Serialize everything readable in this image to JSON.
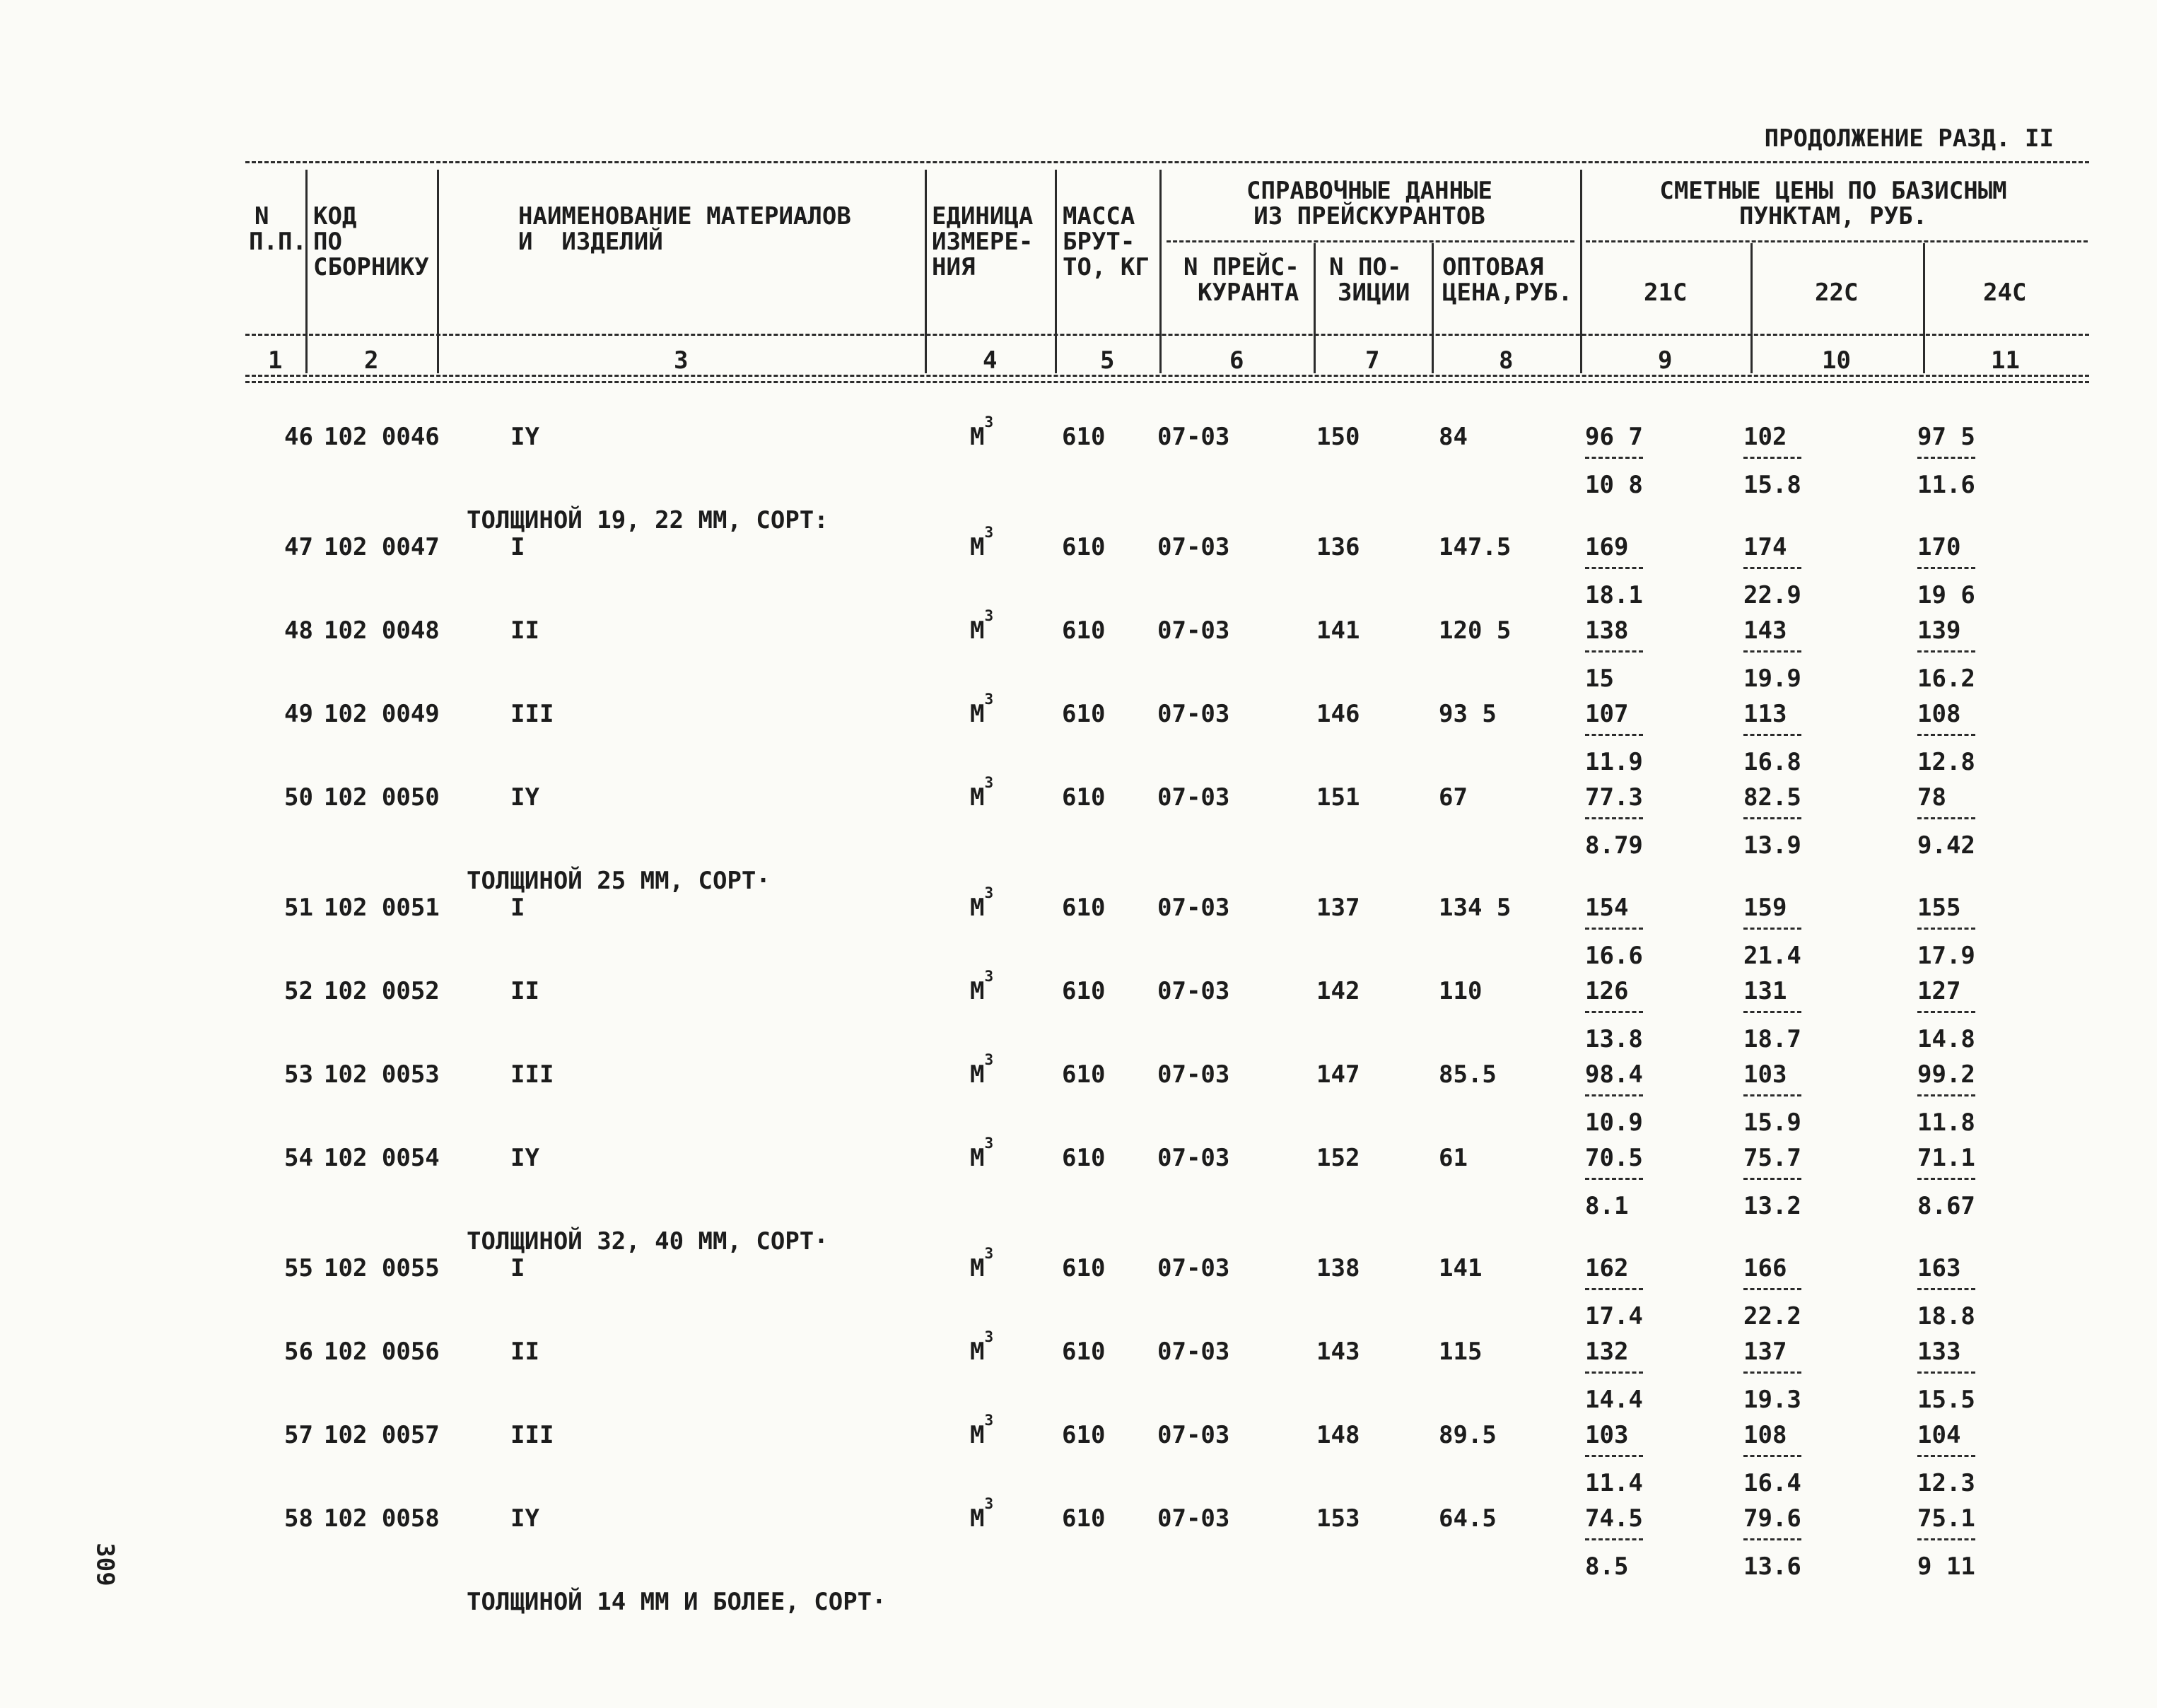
{
  "page": {
    "continuation": "ПРОДОЛЖЕНИЕ РАЗД. II",
    "page_number": "309"
  },
  "table": {
    "headers": {
      "col1": [
        "N",
        "П.П."
      ],
      "col2": [
        "КОД",
        "ПО",
        "СБОРНИКУ"
      ],
      "col3": [
        "НАИМЕНОВАНИЕ МАТЕРИАЛОВ",
        "И  ИЗДЕЛИЙ"
      ],
      "col4": [
        "ЕДИНИЦА",
        "ИЗМЕРЕ-",
        "НИЯ"
      ],
      "col5": [
        "МАССА",
        "БРУТ-",
        "ТО, КГ"
      ],
      "group_reference": [
        "СПРАВОЧНЫЕ ДАННЫЕ",
        "ИЗ ПРЕЙСКУРАНТОВ"
      ],
      "col6": [
        "N ПРЕЙС-",
        "КУРАНТА"
      ],
      "col7": [
        "N ПО-",
        "ЗИЦИИ"
      ],
      "col8": [
        "ОПТОВАЯ",
        "ЦЕНА,РУБ."
      ],
      "group_estimate": [
        "СМЕТНЫЕ ЦЕНЫ ПО БАЗИСНЫМ",
        "ПУНКТАМ, РУБ."
      ],
      "col9": "21С",
      "col10": "22С",
      "col11": "24С",
      "column_numbers": [
        "1",
        "2",
        "3",
        "4",
        "5",
        "6",
        "7",
        "8",
        "9",
        "10",
        "11"
      ]
    },
    "rows": [
      {
        "type": "item",
        "num": "46",
        "code": "102 0046",
        "name": "IY",
        "unit": "М3",
        "mass": "610",
        "pricelist": "07-03",
        "position": "150",
        "wholesale": "84",
        "p21": [
          "96 7",
          "10 8"
        ],
        "p22": [
          "102",
          "15.8"
        ],
        "p24": [
          "97 5",
          "11.6"
        ]
      },
      {
        "type": "section",
        "label": "ТОЛЩИНОЙ 19, 22 ММ, СОРТ:"
      },
      {
        "type": "item",
        "num": "47",
        "code": "102 0047",
        "name": "I",
        "unit": "М3",
        "mass": "610",
        "pricelist": "07-03",
        "position": "136",
        "wholesale": "147.5",
        "p21": [
          "169",
          "18.1"
        ],
        "p22": [
          "174",
          "22.9"
        ],
        "p24": [
          "170",
          "19 6"
        ]
      },
      {
        "type": "item",
        "num": "48",
        "code": "102 0048",
        "name": "II",
        "unit": "М3",
        "mass": "610",
        "pricelist": "07-03",
        "position": "141",
        "wholesale": "120 5",
        "p21": [
          "138",
          "15"
        ],
        "p22": [
          "143",
          "19.9"
        ],
        "p24": [
          "139",
          "16.2"
        ]
      },
      {
        "type": "item",
        "num": "49",
        "code": "102 0049",
        "name": "III",
        "unit": "М3",
        "mass": "610",
        "pricelist": "07-03",
        "position": "146",
        "wholesale": "93 5",
        "p21": [
          "107",
          "11.9"
        ],
        "p22": [
          "113",
          "16.8"
        ],
        "p24": [
          "108",
          "12.8"
        ]
      },
      {
        "type": "item",
        "num": "50",
        "code": "102 0050",
        "name": "IY",
        "unit": "М3",
        "mass": "610",
        "pricelist": "07-03",
        "position": "151",
        "wholesale": "67",
        "p21": [
          "77.3",
          "8.79"
        ],
        "p22": [
          "82.5",
          "13.9"
        ],
        "p24": [
          "78",
          "9.42"
        ]
      },
      {
        "type": "section",
        "label": "ТОЛЩИНОЙ 25 ММ, СОРТ·"
      },
      {
        "type": "item",
        "num": "51",
        "code": "102 0051",
        "name": "I",
        "unit": "М3",
        "mass": "610",
        "pricelist": "07-03",
        "position": "137",
        "wholesale": "134 5",
        "p21": [
          "154",
          "16.6"
        ],
        "p22": [
          "159",
          "21.4"
        ],
        "p24": [
          "155",
          "17.9"
        ]
      },
      {
        "type": "item",
        "num": "52",
        "code": "102 0052",
        "name": "II",
        "unit": "М3",
        "mass": "610",
        "pricelist": "07-03",
        "position": "142",
        "wholesale": "110",
        "p21": [
          "126",
          "13.8"
        ],
        "p22": [
          "131",
          "18.7"
        ],
        "p24": [
          "127",
          "14.8"
        ]
      },
      {
        "type": "item",
        "num": "53",
        "code": "102 0053",
        "name": "III",
        "unit": "М3",
        "mass": "610",
        "pricelist": "07-03",
        "position": "147",
        "wholesale": "85.5",
        "p21": [
          "98.4",
          "10.9"
        ],
        "p22": [
          "103",
          "15.9"
        ],
        "p24": [
          "99.2",
          "11.8"
        ]
      },
      {
        "type": "item",
        "num": "54",
        "code": "102 0054",
        "name": "IY",
        "unit": "М3",
        "mass": "610",
        "pricelist": "07-03",
        "position": "152",
        "wholesale": "61",
        "p21": [
          "70.5",
          "8.1"
        ],
        "p22": [
          "75.7",
          "13.2"
        ],
        "p24": [
          "71.1",
          "8.67"
        ]
      },
      {
        "type": "section",
        "label": "ТОЛЩИНОЙ 32, 40 ММ, СОРТ·"
      },
      {
        "type": "item",
        "num": "55",
        "code": "102 0055",
        "name": "I",
        "unit": "М3",
        "mass": "610",
        "pricelist": "07-03",
        "position": "138",
        "wholesale": "141",
        "p21": [
          "162",
          "17.4"
        ],
        "p22": [
          "166",
          "22.2"
        ],
        "p24": [
          "163",
          "18.8"
        ]
      },
      {
        "type": "item",
        "num": "56",
        "code": "102 0056",
        "name": "II",
        "unit": "М3",
        "mass": "610",
        "pricelist": "07-03",
        "position": "143",
        "wholesale": "115",
        "p21": [
          "132",
          "14.4"
        ],
        "p22": [
          "137",
          "19.3"
        ],
        "p24": [
          "133",
          "15.5"
        ]
      },
      {
        "type": "item",
        "num": "57",
        "code": "102 0057",
        "name": "III",
        "unit": "М3",
        "mass": "610",
        "pricelist": "07-03",
        "position": "148",
        "wholesale": "89.5",
        "p21": [
          "103",
          "11.4"
        ],
        "p22": [
          "108",
          "16.4"
        ],
        "p24": [
          "104",
          "12.3"
        ]
      },
      {
        "type": "item",
        "num": "58",
        "code": "102 0058",
        "name": "IY",
        "unit": "М3",
        "mass": "610",
        "pricelist": "07-03",
        "position": "153",
        "wholesale": "64.5",
        "p21": [
          "74.5",
          "8.5"
        ],
        "p22": [
          "79.6",
          "13.6"
        ],
        "p24": [
          "75.1",
          "9 11"
        ]
      },
      {
        "type": "section",
        "label": "ТОЛЩИНОЙ 14 ММ И БОЛЕЕ, СОРТ·"
      }
    ]
  }
}
